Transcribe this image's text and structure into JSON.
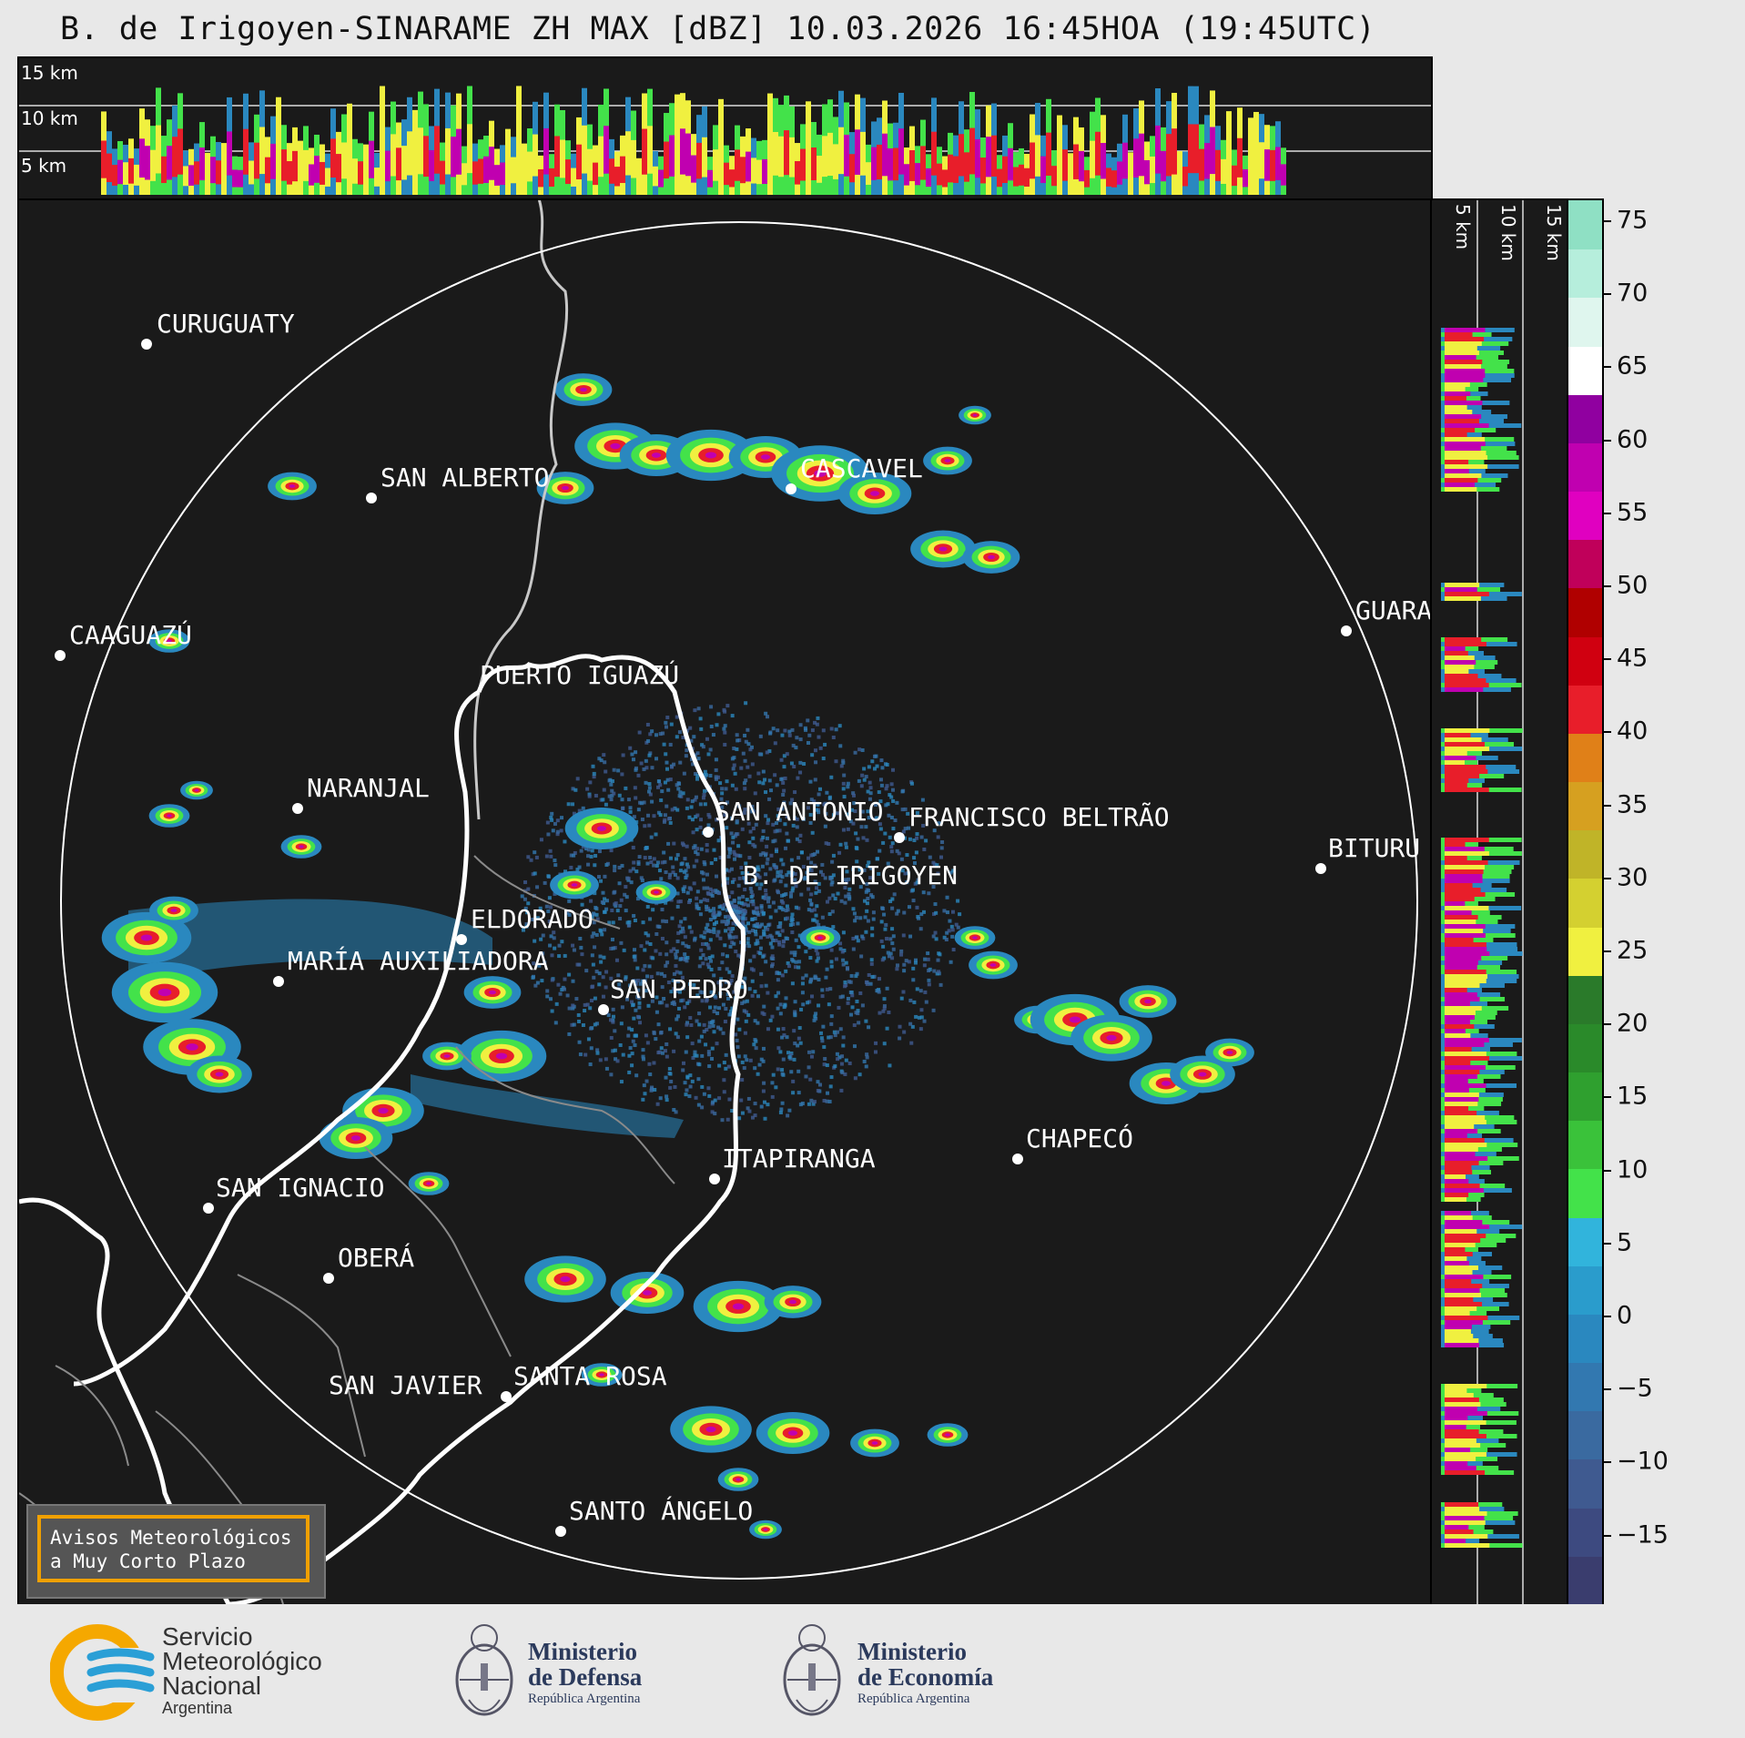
{
  "title": "B. de Irigoyen-SINARAME ZH MAX [dBZ] 10.03.2026 16:45HOA (19:45UTC)",
  "top_strip": {
    "labels": [
      "15 km",
      "10 km",
      "5 km"
    ]
  },
  "side_strip": {
    "labels": [
      "5 km",
      "10 km",
      "15 km"
    ]
  },
  "colorbar": {
    "ticks": [
      "75",
      "70",
      "65",
      "60",
      "55",
      "50",
      "45",
      "40",
      "35",
      "30",
      "25",
      "20",
      "15",
      "10",
      "5",
      "0",
      "−5",
      "−10",
      "−15"
    ],
    "colors": [
      "#3a3d6e",
      "#3d4a80",
      "#3f5a90",
      "#3a6aa0",
      "#3278b0",
      "#2a88bf",
      "#2a9ccc",
      "#31b4dc",
      "#43e24a",
      "#3ac23a",
      "#2fa02f",
      "#2a8a2a",
      "#2a7a2a",
      "#f0f040",
      "#d4d030",
      "#c0b428",
      "#d6a020",
      "#e08018",
      "#e81e2a",
      "#d00010",
      "#b00000",
      "#c0005a",
      "#e000c0",
      "#c000b0",
      "#9000a0",
      "#ffffff",
      "#dff6ee",
      "#b6eedc",
      "#8fe0c4"
    ]
  },
  "cities": [
    {
      "name": "CURUGUATY"
    },
    {
      "name": "SAN ALBERTO"
    },
    {
      "name": "CASCAVEL"
    },
    {
      "name": "CAAGUAZÚ"
    },
    {
      "name": "GUARA"
    },
    {
      "name": "PUERTO IGUAZÚ"
    },
    {
      "name": "NARANJAL"
    },
    {
      "name": "SAN ANTONIO"
    },
    {
      "name": "FRANCISCO BELTRÃO"
    },
    {
      "name": "B. DE IRIGOYEN"
    },
    {
      "name": "BITURU"
    },
    {
      "name": "ELDORADO"
    },
    {
      "name": "MARÍA AUXILIADORA"
    },
    {
      "name": "SAN PEDRO"
    },
    {
      "name": "CHAPECÓ"
    },
    {
      "name": "ITAPIRANGA"
    },
    {
      "name": "SAN IGNACIO"
    },
    {
      "name": "OBERÁ"
    },
    {
      "name": "SAN JAVIER"
    },
    {
      "name": "SANTA ROSA"
    },
    {
      "name": "SANTO ÁNGELO"
    }
  ],
  "alert": {
    "line1": "Avisos Meteorológicos",
    "line2": "a Muy Corto Plazo"
  },
  "footer": {
    "smn": {
      "line1": "Servicio",
      "line2": "Meteorológico",
      "line3": "Nacional",
      "line4": "Argentina"
    },
    "defensa": {
      "line1": "Ministerio",
      "line2": "de Defensa",
      "line3": "República Argentina"
    },
    "economia": {
      "line1": "Ministerio",
      "line2": "de Economía",
      "line3": "República Argentina"
    }
  }
}
